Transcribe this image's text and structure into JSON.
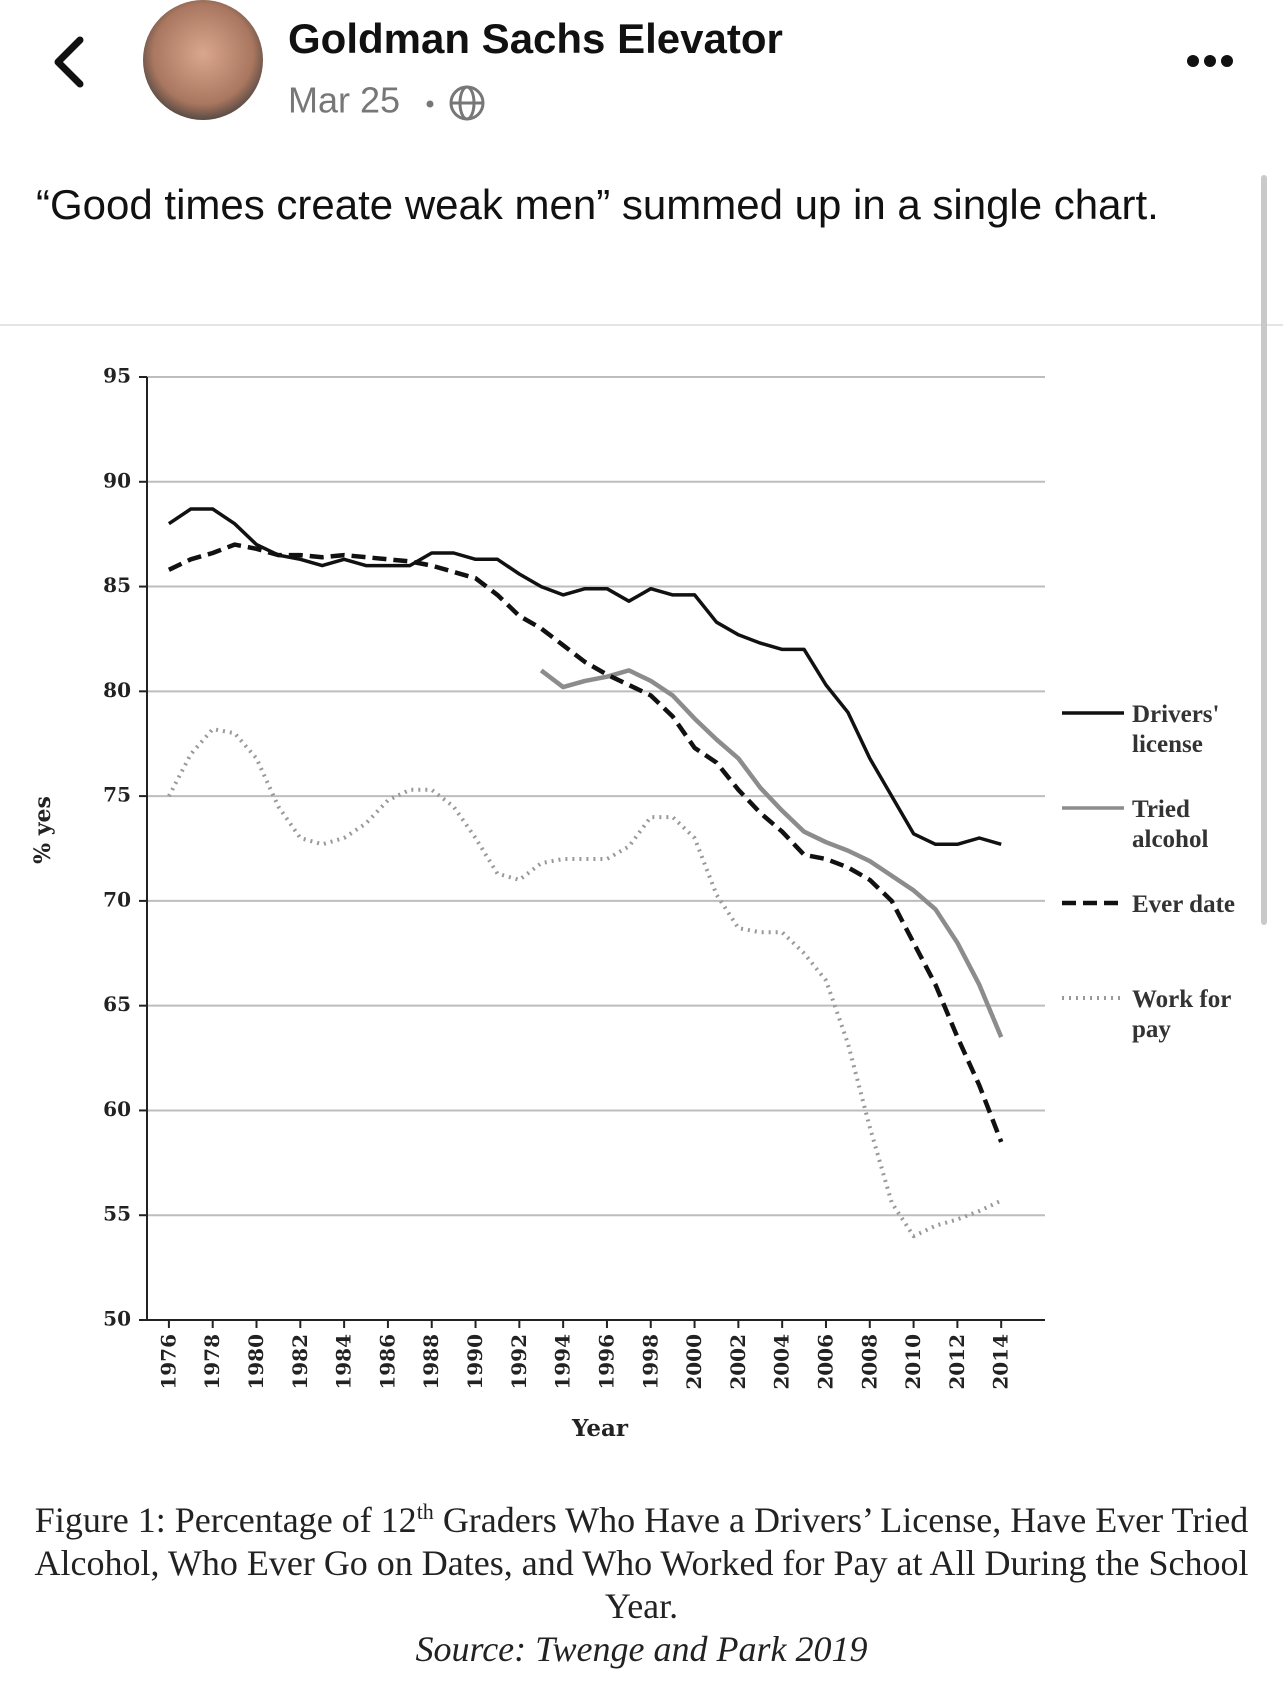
{
  "post": {
    "author": "Goldman Sachs Elevator",
    "date": "Mar 25",
    "text": "“Good times create weak men” summed up in a single chart."
  },
  "chart_data": {
    "type": "line",
    "x": [
      1976,
      1977,
      1978,
      1979,
      1980,
      1981,
      1982,
      1983,
      1984,
      1985,
      1986,
      1987,
      1988,
      1989,
      1990,
      1991,
      1992,
      1993,
      1994,
      1995,
      1996,
      1997,
      1998,
      1999,
      2000,
      2001,
      2002,
      2003,
      2004,
      2005,
      2006,
      2007,
      2008,
      2009,
      2010,
      2011,
      2012,
      2013,
      2014
    ],
    "series": [
      {
        "name": "Drivers' license",
        "color": "#111111",
        "style": "solid",
        "values": [
          88,
          88.7,
          88.7,
          88,
          87,
          86.5,
          86.3,
          86,
          86.3,
          86,
          86,
          86,
          86.6,
          86.6,
          86.3,
          86.3,
          85.6,
          85,
          84.6,
          84.9,
          84.9,
          84.3,
          84.9,
          84.6,
          84.6,
          83.3,
          82.7,
          82.3,
          82,
          82,
          80.3,
          79,
          76.8,
          75,
          73.2,
          72.7,
          72.7,
          73,
          72.7
        ]
      },
      {
        "name": "Tried alcohol",
        "color": "#8c8c8c",
        "style": "solid",
        "values": [
          null,
          null,
          null,
          null,
          null,
          null,
          null,
          null,
          null,
          null,
          null,
          null,
          null,
          null,
          null,
          null,
          null,
          81,
          80.2,
          80.5,
          80.7,
          81,
          80.5,
          79.8,
          78.7,
          77.7,
          76.8,
          75.4,
          74.3,
          73.3,
          72.8,
          72.4,
          71.9,
          71.2,
          70.5,
          69.6,
          68,
          66,
          63.5
        ]
      },
      {
        "name": "Ever date",
        "color": "#111111",
        "style": "dashed",
        "values": [
          85.8,
          86.3,
          86.6,
          87,
          86.8,
          86.5,
          86.5,
          86.4,
          86.5,
          86.4,
          86.3,
          86.2,
          86,
          85.7,
          85.4,
          84.6,
          83.6,
          83,
          82.2,
          81.4,
          80.8,
          80.3,
          79.8,
          78.8,
          77.3,
          76.6,
          75.3,
          74.2,
          73.3,
          72.2,
          72,
          71.6,
          71,
          70,
          68,
          66,
          63.5,
          61.2,
          58.5
        ]
      },
      {
        "name": "Work for pay",
        "color": "#999999",
        "style": "dotted",
        "values": [
          75,
          77,
          78.2,
          78,
          76.8,
          74.5,
          73,
          72.7,
          73,
          73.7,
          74.8,
          75.3,
          75.3,
          74.5,
          73,
          71.3,
          71,
          71.8,
          72,
          72,
          72,
          72.6,
          74,
          74,
          73,
          70.3,
          68.7,
          68.5,
          68.5,
          67.5,
          66.2,
          63.2,
          59.2,
          55.6,
          54,
          54.5,
          54.8,
          55.2,
          55.7
        ]
      }
    ],
    "xlabel": "Year",
    "ylabel": "% yes",
    "xlim": [
      1975,
      2016
    ],
    "xticks": [
      1976,
      1978,
      1980,
      1982,
      1984,
      1986,
      1988,
      1990,
      1992,
      1994,
      1996,
      1998,
      2000,
      2002,
      2004,
      2006,
      2008,
      2010,
      2012,
      2014
    ],
    "ylim": [
      50,
      95
    ],
    "yticks": [
      50,
      55,
      60,
      65,
      70,
      75,
      80,
      85,
      90,
      95
    ],
    "grid": true,
    "caption_parts": [
      "Figure 1: Percentage of 12",
      "th",
      " Graders Who Have a Drivers’ License, Have Ever Tried Alcohol, Who Ever Go on Dates, and Who Worked for Pay at All During the School Year."
    ],
    "source": "Source: Twenge and Park 2019"
  }
}
